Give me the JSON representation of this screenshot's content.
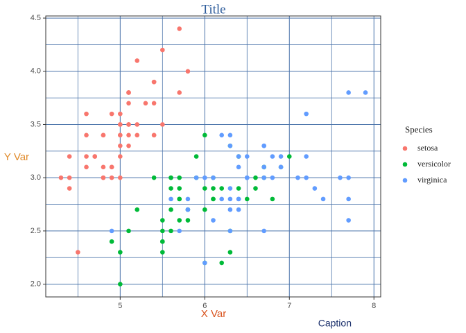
{
  "chart_data": {
    "type": "scatter",
    "title": "Title",
    "x_label": "X Var",
    "y_label": "Y Var",
    "caption": "Caption",
    "legend_title": "Species",
    "legend_position": "right",
    "grid": true,
    "xlim": [
      4.12,
      8.08
    ],
    "ylim": [
      1.88,
      4.52
    ],
    "xticks": [
      5,
      6,
      7,
      8
    ],
    "yticks": [
      {
        "value": 2,
        "label": "2.0"
      },
      {
        "value": 2.5,
        "label": "2.5"
      },
      {
        "value": 3,
        "label": "3.0"
      },
      {
        "value": 3.5,
        "label": "3.5"
      },
      {
        "value": 4,
        "label": "4.0"
      },
      {
        "value": 4.5,
        "label": "4.5"
      }
    ],
    "x_minor_grid": [
      4.5,
      5.5,
      6.5,
      7.5
    ],
    "y_minor_grid": [
      2.25,
      2.75,
      3.25,
      3.75,
      4.25
    ],
    "series": [
      {
        "name": "setosa",
        "color": "#F8766D",
        "x": [
          5.1,
          4.9,
          4.7,
          4.6,
          5.0,
          5.4,
          4.6,
          5.0,
          4.4,
          4.9,
          5.4,
          4.8,
          4.8,
          4.3,
          5.8,
          5.7,
          5.4,
          5.1,
          5.7,
          5.1,
          5.4,
          5.1,
          4.6,
          5.1,
          4.8,
          5.0,
          5.0,
          5.2,
          5.2,
          4.7,
          4.8,
          5.4,
          5.2,
          5.5,
          4.9,
          5.0,
          5.5,
          4.9,
          4.4,
          5.1,
          5.0,
          4.5,
          4.4,
          5.0,
          5.1,
          4.8,
          5.1,
          4.6,
          5.3,
          5.0
        ],
        "values": [
          3.5,
          3.0,
          3.2,
          3.1,
          3.6,
          3.9,
          3.4,
          3.4,
          2.9,
          3.1,
          3.7,
          3.4,
          3.0,
          3.0,
          4.0,
          4.4,
          3.9,
          3.5,
          3.8,
          3.8,
          3.4,
          3.7,
          3.6,
          3.3,
          3.4,
          3.0,
          3.4,
          3.5,
          3.4,
          3.2,
          3.1,
          3.4,
          4.1,
          4.2,
          3.1,
          3.2,
          3.5,
          3.6,
          3.0,
          3.4,
          3.5,
          2.3,
          3.2,
          3.5,
          3.8,
          3.0,
          3.8,
          3.2,
          3.7,
          3.3
        ]
      },
      {
        "name": "versicolor",
        "color": "#00BA38",
        "x": [
          7.0,
          6.4,
          6.9,
          5.5,
          6.5,
          5.7,
          6.3,
          4.9,
          6.6,
          5.2,
          5.0,
          5.9,
          6.0,
          6.1,
          5.6,
          6.7,
          5.6,
          5.8,
          6.2,
          5.6,
          5.9,
          6.1,
          6.3,
          6.1,
          6.4,
          6.6,
          6.8,
          6.7,
          6.0,
          5.7,
          5.5,
          5.5,
          5.8,
          6.0,
          5.4,
          6.0,
          6.7,
          6.3,
          5.6,
          5.5,
          5.5,
          6.1,
          5.8,
          5.0,
          5.6,
          5.7,
          5.7,
          6.2,
          5.1,
          5.7
        ],
        "values": [
          3.2,
          3.2,
          3.1,
          2.3,
          2.8,
          2.8,
          3.3,
          2.4,
          2.9,
          2.7,
          2.0,
          3.0,
          2.2,
          2.9,
          2.9,
          3.1,
          3.0,
          2.7,
          2.2,
          2.5,
          3.2,
          2.8,
          2.5,
          2.8,
          2.9,
          3.0,
          2.8,
          3.0,
          2.9,
          2.6,
          2.4,
          2.4,
          2.7,
          2.7,
          3.0,
          3.4,
          3.1,
          2.3,
          3.0,
          2.5,
          2.6,
          3.0,
          2.6,
          2.3,
          2.7,
          3.0,
          2.9,
          2.9,
          2.5,
          2.8
        ]
      },
      {
        "name": "virginica",
        "color": "#619CFF",
        "x": [
          6.3,
          5.8,
          7.1,
          6.3,
          6.5,
          7.6,
          4.9,
          7.3,
          6.7,
          7.2,
          6.5,
          6.4,
          6.8,
          5.7,
          5.8,
          6.4,
          6.5,
          7.7,
          7.7,
          6.0,
          6.9,
          5.6,
          7.7,
          6.3,
          6.7,
          7.2,
          6.2,
          6.1,
          6.4,
          7.2,
          7.4,
          7.9,
          6.4,
          6.3,
          6.1,
          7.7,
          6.3,
          6.4,
          6.0,
          6.9,
          6.7,
          6.9,
          5.8,
          6.8,
          6.7,
          6.7,
          6.3,
          6.5,
          6.2,
          5.9
        ],
        "values": [
          3.3,
          2.7,
          3.0,
          2.9,
          3.0,
          3.0,
          2.5,
          2.9,
          2.5,
          3.6,
          3.2,
          2.7,
          3.0,
          2.5,
          2.8,
          3.2,
          3.0,
          3.8,
          2.6,
          2.2,
          3.2,
          2.8,
          2.8,
          2.7,
          3.3,
          3.2,
          2.8,
          3.0,
          2.8,
          3.0,
          2.8,
          3.8,
          2.8,
          2.8,
          2.6,
          3.0,
          3.4,
          3.1,
          3.0,
          3.1,
          3.1,
          3.1,
          2.7,
          3.2,
          3.3,
          3.0,
          2.5,
          3.0,
          3.4,
          3.0
        ]
      }
    ]
  }
}
